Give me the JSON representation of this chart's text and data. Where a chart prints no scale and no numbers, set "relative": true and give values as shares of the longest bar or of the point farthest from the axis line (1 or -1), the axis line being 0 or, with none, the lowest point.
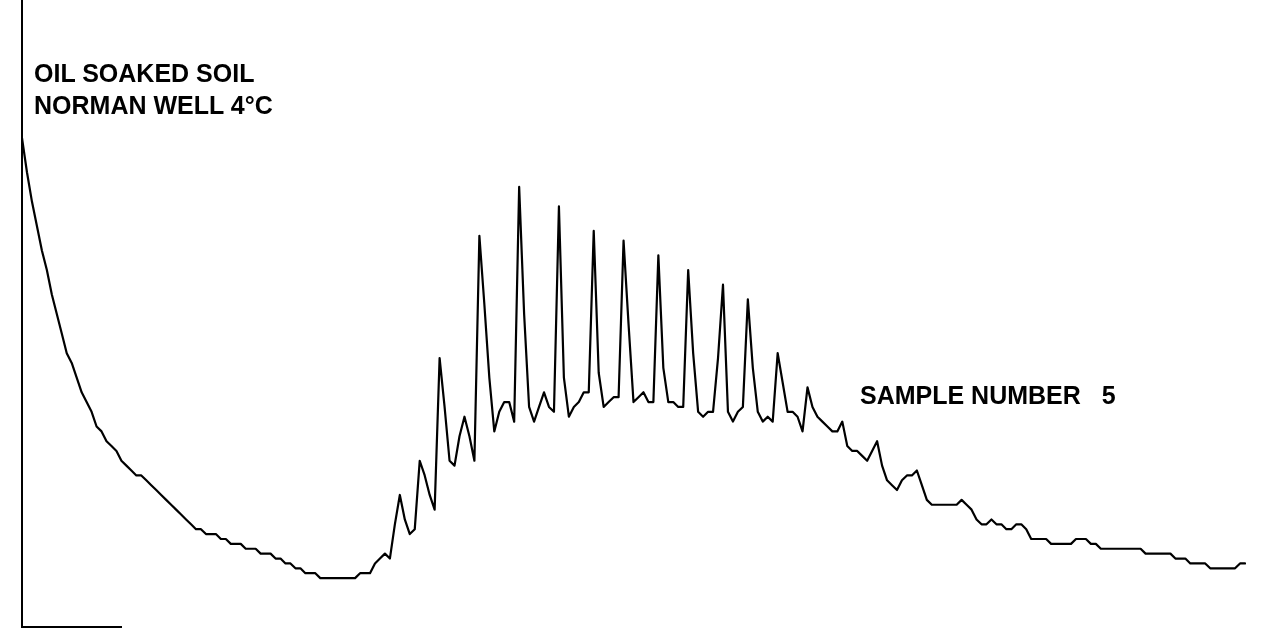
{
  "chart_data": {
    "type": "line",
    "title": "OIL SOAKED SOIL",
    "subtitle": "NORMAN WELL 4°C",
    "annotations": [
      "SAMPLE NUMBER   5"
    ],
    "relative": true,
    "grid": false,
    "legend": false,
    "marker": "none",
    "line_style": "solid",
    "tick_labels": false,
    "categories": [
      null,
      null,
      null,
      null,
      null,
      null,
      null,
      null,
      null,
      null,
      null,
      null,
      null,
      null,
      null,
      null,
      null,
      null,
      null,
      null,
      null,
      null,
      null,
      null,
      null,
      null,
      null,
      null,
      null,
      null,
      null,
      null,
      null,
      null,
      null,
      null,
      null,
      null,
      null,
      null,
      null,
      null,
      null,
      null,
      null,
      null,
      null,
      null,
      null,
      null,
      null,
      null,
      null,
      null,
      null,
      null,
      null,
      null,
      null,
      null,
      null,
      null,
      null,
      null,
      null,
      null,
      null,
      null,
      null,
      null,
      null,
      null,
      null,
      null,
      null,
      null,
      null,
      null,
      null,
      null,
      null,
      null,
      null,
      null,
      null,
      null,
      null,
      null,
      null,
      null,
      null,
      null,
      null,
      null,
      null,
      null,
      null,
      null,
      null,
      null,
      null,
      null,
      null,
      null,
      null,
      null,
      null,
      null,
      null,
      null,
      null,
      null,
      null,
      null,
      null,
      null,
      null,
      null,
      null,
      null,
      null,
      null,
      null,
      null,
      null,
      null,
      null,
      null,
      null,
      null,
      null,
      null,
      null,
      null,
      null,
      null,
      null,
      null,
      null,
      null,
      null,
      null,
      null,
      null,
      null,
      null,
      null,
      null,
      null,
      null,
      null,
      null,
      null,
      null,
      null,
      null,
      null,
      null,
      null,
      null,
      null,
      null,
      null,
      null,
      null,
      null,
      null,
      null,
      null,
      null,
      null,
      null,
      null,
      null,
      null,
      null,
      null,
      null,
      null,
      null,
      null,
      null,
      null,
      null,
      null,
      null,
      null,
      null,
      null,
      null,
      null,
      null,
      null,
      null,
      null,
      null,
      null,
      null,
      null,
      null,
      null,
      null,
      null,
      null,
      null,
      null,
      null,
      null,
      null,
      null,
      null,
      null,
      null,
      null,
      null,
      null,
      null,
      null,
      null,
      null,
      null,
      null,
      null,
      null,
      null,
      null,
      null,
      null,
      null,
      null,
      null,
      null,
      null,
      null,
      null,
      null,
      null,
      null,
      null,
      null,
      null,
      null,
      null,
      null,
      null,
      null,
      null
    ],
    "series": [
      {
        "color": "#000000",
        "values": [
          1.0,
          0.93,
          0.87,
          0.82,
          0.77,
          0.73,
          0.68,
          0.64,
          0.6,
          0.56,
          0.54,
          0.51,
          0.48,
          0.46,
          0.44,
          0.41,
          0.4,
          0.38,
          0.37,
          0.36,
          0.34,
          0.33,
          0.32,
          0.31,
          0.31,
          0.3,
          0.29,
          0.28,
          0.27,
          0.26,
          0.25,
          0.24,
          0.23,
          0.22,
          0.21,
          0.2,
          0.2,
          0.19,
          0.19,
          0.19,
          0.18,
          0.18,
          0.17,
          0.17,
          0.17,
          0.16,
          0.16,
          0.16,
          0.15,
          0.15,
          0.15,
          0.14,
          0.14,
          0.13,
          0.13,
          0.12,
          0.12,
          0.11,
          0.11,
          0.11,
          0.1,
          0.1,
          0.1,
          0.1,
          0.1,
          0.1,
          0.1,
          0.1,
          0.11,
          0.11,
          0.11,
          0.13,
          0.14,
          0.15,
          0.14,
          0.21,
          0.27,
          0.22,
          0.19,
          0.2,
          0.34,
          0.31,
          0.27,
          0.24,
          0.55,
          0.45,
          0.34,
          0.33,
          0.39,
          0.43,
          0.39,
          0.34,
          0.8,
          0.66,
          0.51,
          0.4,
          0.44,
          0.46,
          0.46,
          0.42,
          0.9,
          0.64,
          0.45,
          0.42,
          0.45,
          0.48,
          0.45,
          0.44,
          0.86,
          0.51,
          0.43,
          0.45,
          0.46,
          0.48,
          0.48,
          0.81,
          0.52,
          0.45,
          0.46,
          0.47,
          0.47,
          0.79,
          0.62,
          0.46,
          0.47,
          0.48,
          0.46,
          0.46,
          0.76,
          0.53,
          0.46,
          0.46,
          0.45,
          0.45,
          0.73,
          0.56,
          0.44,
          0.43,
          0.44,
          0.44,
          0.55,
          0.7,
          0.44,
          0.42,
          0.44,
          0.45,
          0.67,
          0.53,
          0.44,
          0.42,
          0.43,
          0.42,
          0.56,
          0.5,
          0.44,
          0.44,
          0.43,
          0.4,
          0.49,
          0.45,
          0.43,
          0.42,
          0.41,
          0.4,
          0.4,
          0.42,
          0.37,
          0.36,
          0.36,
          0.35,
          0.34,
          0.36,
          0.38,
          0.33,
          0.3,
          0.29,
          0.28,
          0.3,
          0.31,
          0.31,
          0.32,
          0.29,
          0.26,
          0.25,
          0.25,
          0.25,
          0.25,
          0.25,
          0.25,
          0.26,
          0.25,
          0.24,
          0.22,
          0.21,
          0.21,
          0.22,
          0.21,
          0.21,
          0.2,
          0.2,
          0.21,
          0.21,
          0.2,
          0.18,
          0.18,
          0.18,
          0.18,
          0.17,
          0.17,
          0.17,
          0.17,
          0.17,
          0.18,
          0.18,
          0.18,
          0.17,
          0.17,
          0.16,
          0.16,
          0.16,
          0.16,
          0.16,
          0.16,
          0.16,
          0.16,
          0.16,
          0.15,
          0.15,
          0.15,
          0.15,
          0.15,
          0.15,
          0.14,
          0.14,
          0.14,
          0.13,
          0.13,
          0.13,
          0.13,
          0.12,
          0.12,
          0.12,
          0.12,
          0.12,
          0.12,
          0.13,
          0.13
        ]
      }
    ]
  }
}
